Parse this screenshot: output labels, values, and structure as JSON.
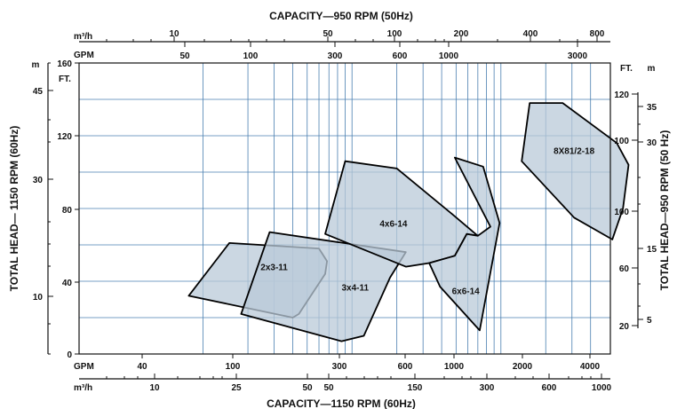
{
  "chart_data": {
    "type": "area",
    "title_top": "CAPACITY—950 RPM (50Hz)",
    "title_bottom": "CAPACITY—1150 RPM (60Hz)",
    "ylabel_left": "TOTAL HEAD— 1150 RPM (60Hz)",
    "ylabel_right": "TOTAL HEAD—950 RPM (50 Hz)",
    "x_scale": "log",
    "grid": true,
    "axes": {
      "bottom_gpm": {
        "unit": "GPM",
        "ticks": [
          "40",
          "100",
          "300",
          "600",
          "1000",
          "2000",
          "4000"
        ]
      },
      "bottom_m3h": {
        "unit": "m³/h",
        "ticks": [
          "10",
          "25",
          "50",
          "50",
          "150",
          "300",
          "600",
          "1000"
        ]
      },
      "top_m3h": {
        "unit": "m³/h",
        "ticks": [
          "10",
          "50",
          "100",
          "200",
          "400",
          "800"
        ]
      },
      "top_gpm": {
        "unit": "GPM",
        "ticks": [
          "50",
          "100",
          "300",
          "600",
          "1000",
          "3000"
        ]
      },
      "left_ft": {
        "unit": "FT.",
        "ticks": [
          "160",
          "120",
          "80",
          "40",
          "0"
        ]
      },
      "left_m": {
        "unit": "m",
        "ticks": [
          "45",
          "30",
          "10"
        ]
      },
      "right_ft": {
        "unit": "FT.",
        "ticks": [
          "120",
          "100",
          "100",
          "60",
          "20"
        ]
      },
      "right_m": {
        "unit": "m",
        "ticks": [
          "35",
          "30",
          "15",
          "5"
        ]
      }
    },
    "series": [
      {
        "name": "2x3-11",
        "points": [
          [
            8,
            32
          ],
          [
            15,
            61
          ],
          [
            60,
            58
          ],
          [
            68,
            51
          ],
          [
            66,
            44
          ],
          [
            44,
            22
          ],
          [
            40,
            20
          ],
          [
            8,
            32
          ]
        ]
      },
      {
        "name": "3x4-11",
        "points": [
          [
            18,
            22
          ],
          [
            28,
            67
          ],
          [
            230,
            56
          ],
          [
            180,
            42
          ],
          [
            120,
            10
          ],
          [
            85,
            7
          ],
          [
            18,
            22
          ]
        ]
      },
      {
        "name": "4x6-14",
        "points": [
          [
            66,
            66
          ],
          [
            90,
            106
          ],
          [
            200,
            102
          ],
          [
            470,
            77
          ],
          [
            700,
            65
          ],
          [
            590,
            66
          ],
          [
            490,
            54
          ],
          [
            330,
            50
          ],
          [
            230,
            48
          ],
          [
            66,
            66
          ]
        ]
      },
      {
        "name": "6x6-14",
        "points": [
          [
            390,
            37
          ],
          [
            330,
            50
          ],
          [
            490,
            54
          ],
          [
            590,
            66
          ],
          [
            700,
            65
          ],
          [
            850,
            70
          ],
          [
            490,
            108
          ],
          [
            760,
            103
          ],
          [
            980,
            72
          ],
          [
            720,
            13
          ],
          [
            390,
            37
          ]
        ]
      },
      {
        "name": "8X81/2-18",
        "points": [
          [
            1380,
            106
          ],
          [
            1560,
            138
          ],
          [
            2600,
            138
          ],
          [
            6000,
            116
          ],
          [
            7200,
            104
          ],
          [
            6600,
            80
          ],
          [
            5600,
            63
          ],
          [
            3100,
            75
          ],
          [
            1380,
            106
          ]
        ]
      }
    ]
  }
}
